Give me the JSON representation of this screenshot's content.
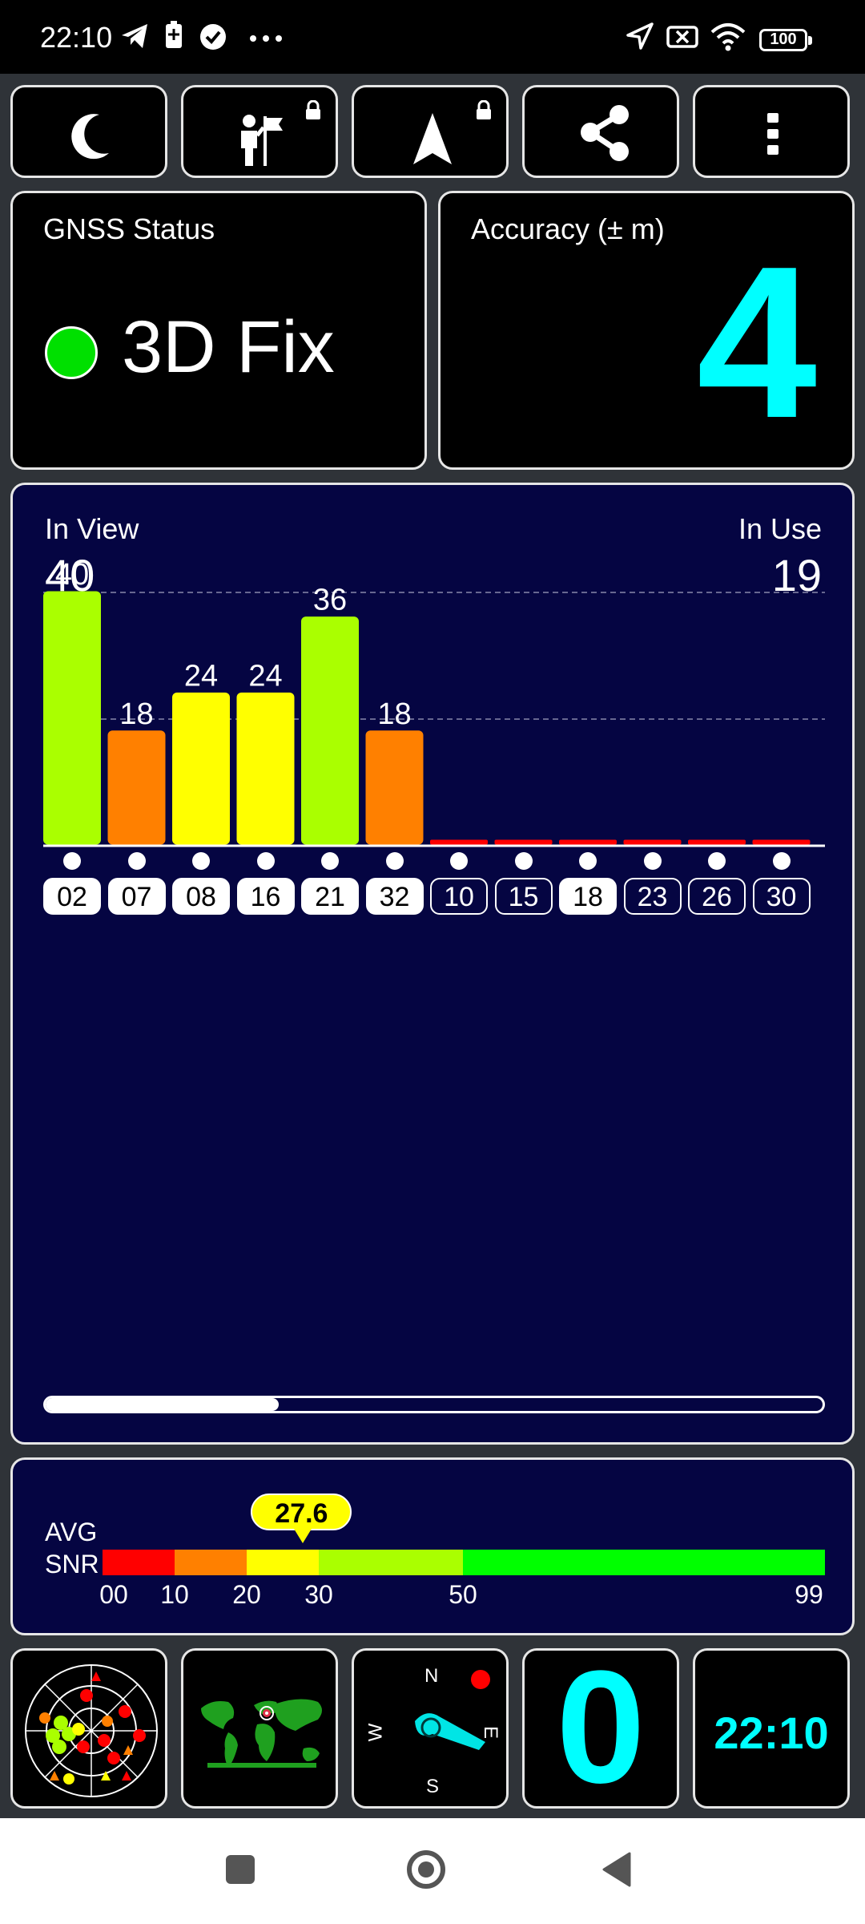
{
  "status_bar": {
    "time": "22:10",
    "notification_icons": [
      "telegram-icon",
      "battery-saver-icon",
      "check-circle-icon",
      "more-dots-icon"
    ],
    "right_icons": [
      "location-arrow-icon",
      "no-sim-icon",
      "wifi-icon",
      "battery-icon"
    ],
    "battery_level": "100"
  },
  "toolbar": {
    "buttons": [
      "night-mode",
      "activity",
      "navigation",
      "share",
      "menu"
    ]
  },
  "gnss_status": {
    "label": "GNSS Status",
    "value": "3D Fix",
    "indicator_color": "#00e000"
  },
  "accuracy": {
    "label": "Accuracy (± m)",
    "value": "4",
    "color": "#00ffff"
  },
  "satellites": {
    "in_view_label": "In View",
    "in_view": "40",
    "in_use_label": "In Use",
    "in_use": "19",
    "scroll_fraction": 0.3
  },
  "chart_data": {
    "type": "bar",
    "categories": [
      "02",
      "07",
      "08",
      "16",
      "21",
      "32",
      "10",
      "15",
      "18",
      "23",
      "26",
      "30"
    ],
    "values": [
      40,
      18,
      24,
      24,
      36,
      18,
      0,
      0,
      0,
      0,
      0,
      0
    ],
    "labels": [
      "40",
      "18",
      "24",
      "24",
      "36",
      "18",
      "",
      "",
      "",
      "",
      "",
      ""
    ],
    "in_use": [
      true,
      true,
      true,
      true,
      true,
      true,
      false,
      false,
      true,
      false,
      false,
      false
    ],
    "ylim": [
      0,
      60
    ],
    "grid": true,
    "colors": {
      "bucket_0_10": "#ff0000",
      "bucket_10_20": "#ff8000",
      "bucket_20_30": "#ffff00",
      "bucket_30_50": "#aaff00",
      "bucket_50_99": "#00ff00"
    }
  },
  "avg_snr": {
    "label_line1": "AVG",
    "label_line2": "SNR",
    "value": "27.6",
    "value_numeric": 27.6,
    "scale_labels": [
      "00",
      "10",
      "20",
      "30",
      "50",
      "99"
    ],
    "segments": [
      {
        "from": 0,
        "to": 10,
        "color": "#ff0000"
      },
      {
        "from": 10,
        "to": 20,
        "color": "#ff8000"
      },
      {
        "from": 20,
        "to": 30,
        "color": "#ffff00"
      },
      {
        "from": 30,
        "to": 50,
        "color": "#aaff00"
      },
      {
        "from": 50,
        "to": 99,
        "color": "#00ff00"
      }
    ]
  },
  "bottom_tiles": {
    "compass_n": "N",
    "compass_s": "S",
    "compass_e": "E",
    "compass_w": "W",
    "speed": "0",
    "clock": "22:10"
  }
}
